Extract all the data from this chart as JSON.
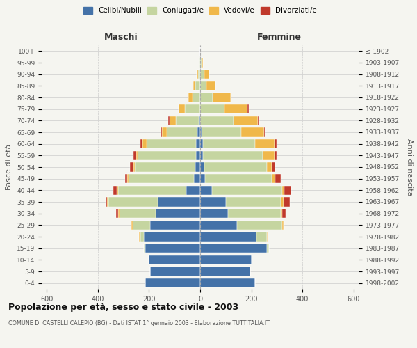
{
  "age_groups": [
    "0-4",
    "5-9",
    "10-14",
    "15-19",
    "20-24",
    "25-29",
    "30-34",
    "35-39",
    "40-44",
    "45-49",
    "50-54",
    "55-59",
    "60-64",
    "65-69",
    "70-74",
    "75-79",
    "80-84",
    "85-89",
    "90-94",
    "95-99",
    "100+"
  ],
  "birth_years": [
    "1998-2002",
    "1993-1997",
    "1988-1992",
    "1983-1987",
    "1978-1982",
    "1973-1977",
    "1968-1972",
    "1963-1967",
    "1958-1962",
    "1953-1957",
    "1948-1952",
    "1943-1947",
    "1938-1942",
    "1933-1937",
    "1928-1932",
    "1923-1927",
    "1918-1922",
    "1913-1917",
    "1908-1912",
    "1903-1907",
    "≤ 1902"
  ],
  "maschi": {
    "celibi": [
      215,
      195,
      200,
      215,
      220,
      195,
      175,
      165,
      55,
      25,
      20,
      15,
      15,
      10,
      5,
      0,
      0,
      0,
      0,
      0,
      0
    ],
    "coniugati": [
      0,
      0,
      0,
      5,
      15,
      70,
      140,
      195,
      265,
      255,
      235,
      230,
      195,
      120,
      90,
      60,
      30,
      18,
      8,
      2,
      0
    ],
    "vedovi": [
      0,
      0,
      0,
      0,
      5,
      5,
      5,
      5,
      5,
      5,
      5,
      5,
      15,
      20,
      25,
      25,
      15,
      8,
      5,
      0,
      0
    ],
    "divorziati": [
      0,
      0,
      0,
      0,
      0,
      0,
      10,
      5,
      15,
      10,
      15,
      10,
      10,
      5,
      5,
      0,
      0,
      0,
      0,
      0,
      0
    ]
  },
  "femmine": {
    "nubili": [
      215,
      195,
      200,
      260,
      220,
      145,
      110,
      100,
      45,
      20,
      15,
      10,
      10,
      5,
      0,
      0,
      0,
      0,
      0,
      0,
      0
    ],
    "coniugate": [
      0,
      0,
      0,
      10,
      40,
      175,
      205,
      215,
      275,
      260,
      245,
      235,
      205,
      155,
      130,
      95,
      50,
      25,
      15,
      5,
      0
    ],
    "vedove": [
      0,
      0,
      0,
      0,
      5,
      5,
      5,
      10,
      10,
      15,
      20,
      45,
      75,
      90,
      95,
      90,
      70,
      35,
      20,
      5,
      0
    ],
    "divorziate": [
      0,
      0,
      0,
      0,
      0,
      5,
      15,
      25,
      25,
      20,
      15,
      10,
      10,
      5,
      5,
      5,
      0,
      0,
      0,
      0,
      0
    ]
  },
  "colors": {
    "celibi": "#4472a8",
    "coniugati": "#c5d5a0",
    "vedovi": "#f0b84a",
    "divorziati": "#c0392b"
  },
  "title": "Popolazione per età, sesso e stato civile - 2003",
  "subtitle": "COMUNE DI CASTELLI CALEPIO (BG) - Dati ISTAT 1° gennaio 2003 - Elaborazione TUTTITALIA.IT",
  "xlabel_left": "Maschi",
  "xlabel_right": "Femmine",
  "ylabel_left": "Fasce di età",
  "ylabel_right": "Anni di nascita",
  "xlim": 620,
  "background_color": "#f5f5f0",
  "legend_labels": [
    "Celibi/Nubili",
    "Coniugati/e",
    "Vedovi/e",
    "Divorziati/e"
  ]
}
